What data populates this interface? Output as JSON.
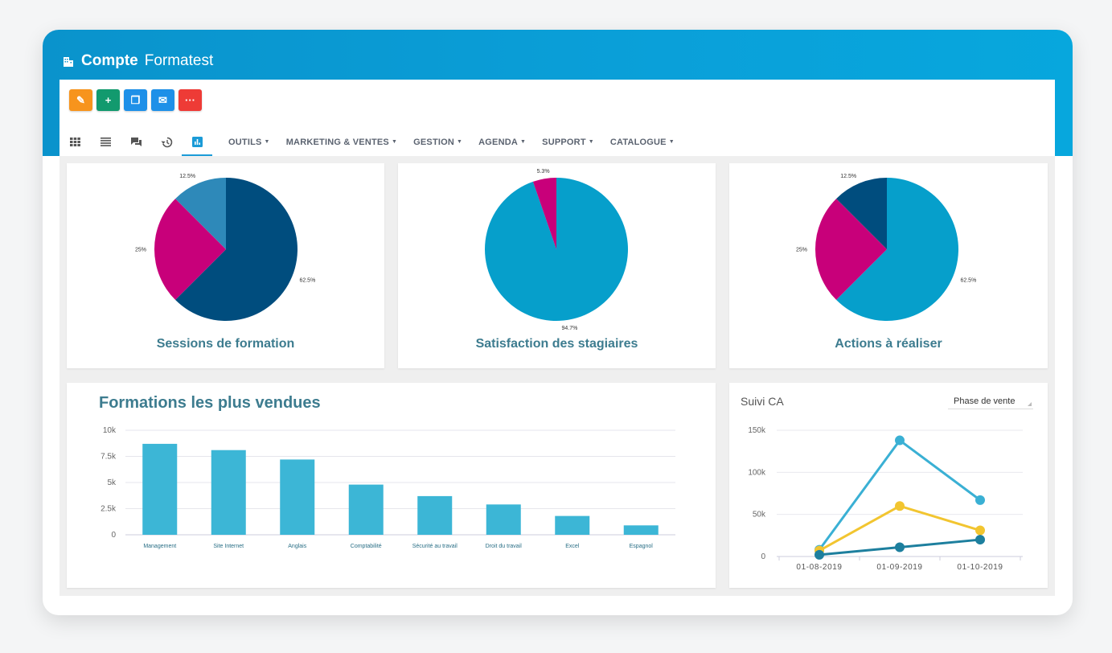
{
  "window": {
    "title_bold": "Compte",
    "title_name": "Formatest"
  },
  "toolbar": {
    "buttons": [
      {
        "name": "edit-button",
        "icon": "pencil-icon",
        "glyph": "✎",
        "color": "#f7941d"
      },
      {
        "name": "add-button",
        "icon": "plus-icon",
        "glyph": "+",
        "color": "#129a6e"
      },
      {
        "name": "copy-button",
        "icon": "copy-icon",
        "glyph": "❐",
        "color": "#1e90e8"
      },
      {
        "name": "email-button",
        "icon": "envelope-icon",
        "glyph": "✉",
        "color": "#1e90e8"
      },
      {
        "name": "more-button",
        "icon": "dots-icon",
        "glyph": "···",
        "color": "#ee3b36"
      }
    ]
  },
  "nav": {
    "icons": [
      "grid-icon",
      "list-icon",
      "chat-icon",
      "history-icon",
      "bar-chart-icon"
    ],
    "active_icon": "bar-chart-icon",
    "menus": [
      "OUTILS",
      "MARKETING & VENTES",
      "GESTION",
      "AGENDA",
      "SUPPORT",
      "CATALOGUE"
    ]
  },
  "colors": {
    "dark_blue": "#004d7e",
    "magenta": "#c8007a",
    "mid_blue": "#2e89b9",
    "cyan": "#069fcb",
    "bar": "#3cb6d6"
  },
  "chart_data": [
    {
      "type": "pie",
      "title": "Sessions de formation",
      "slices": [
        {
          "value": 62.5,
          "label": "62.5%",
          "color": "#004d7e"
        },
        {
          "value": 25,
          "label": "25%",
          "color": "#c8007a"
        },
        {
          "value": 12.5,
          "label": "12.5%",
          "color": "#2e89b9"
        }
      ]
    },
    {
      "type": "pie",
      "title": "Satisfaction des stagiaires",
      "slices": [
        {
          "value": 94.7,
          "label": "94.7%",
          "color": "#069fcb"
        },
        {
          "value": 5.3,
          "label": "5.3%",
          "color": "#c8007a"
        }
      ]
    },
    {
      "type": "pie",
      "title": "Actions à réaliser",
      "slices": [
        {
          "value": 62.5,
          "label": "62.5%",
          "color": "#069fcb"
        },
        {
          "value": 25,
          "label": "25%",
          "color": "#c8007a"
        },
        {
          "value": 12.5,
          "label": "12.5%",
          "color": "#004d7e"
        }
      ]
    },
    {
      "type": "bar",
      "title": "Formations les plus vendues",
      "categories": [
        "Management",
        "Site Internet",
        "Anglais",
        "Comptabilité",
        "Sécurité au travail",
        "Droit du travail",
        "Excel",
        "Espagnol"
      ],
      "values": [
        8700,
        8100,
        7200,
        4800,
        3700,
        2900,
        1800,
        900
      ],
      "yticks": [
        "0",
        "2.5k",
        "5k",
        "7.5k",
        "10k"
      ],
      "ylim": [
        0,
        10000
      ],
      "grid": true,
      "color": "#3cb6d6"
    },
    {
      "type": "line",
      "title": "Suivi CA",
      "select_value": "Phase de vente",
      "x": [
        "01-08-2019",
        "01-09-2019",
        "01-10-2019"
      ],
      "yticks": [
        "0",
        "50k",
        "100k",
        "150k"
      ],
      "ylim": [
        0,
        150000
      ],
      "grid": true,
      "series": [
        {
          "values": [
            8000,
            138000,
            67000
          ],
          "color": "#3ab0d4"
        },
        {
          "values": [
            7000,
            60000,
            31000
          ],
          "color": "#f2c530"
        },
        {
          "values": [
            2000,
            11000,
            20000
          ],
          "color": "#1d7f9e"
        }
      ]
    }
  ]
}
